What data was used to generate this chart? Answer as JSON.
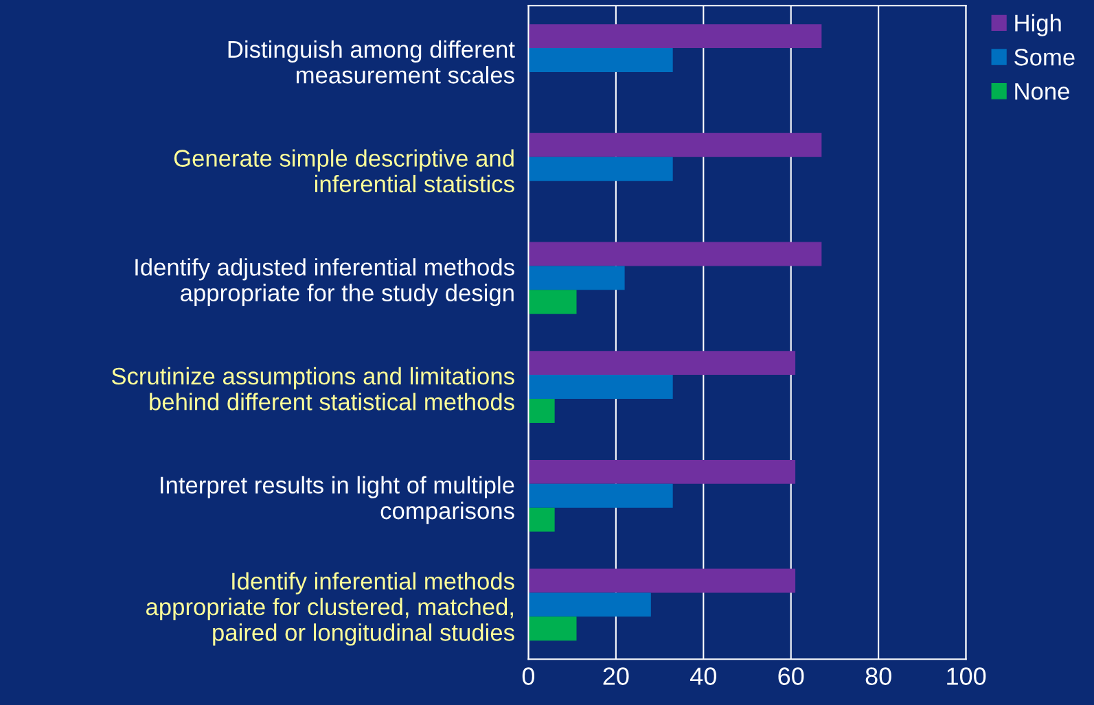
{
  "chart_data": {
    "type": "bar",
    "orientation": "horizontal",
    "categories": [
      "Distinguish among different measurement scales",
      "Generate simple descriptive and inferential statistics",
      "Identify adjusted inferential methods appropriate for the study design",
      "Scrutinize assumptions and limitations behind different statistical methods",
      "Interpret results in light of multiple comparisons",
      "Identify inferential methods appropriate for clustered, matched, paired or longitudinal studies"
    ],
    "series": [
      {
        "name": "High",
        "color": "#7030a0",
        "values": [
          67,
          67,
          67,
          61,
          61,
          61
        ]
      },
      {
        "name": "Some",
        "color": "#0070c0",
        "values": [
          33,
          33,
          22,
          33,
          33,
          28
        ]
      },
      {
        "name": "None",
        "color": "#00b050",
        "values": [
          0,
          0,
          11,
          6,
          6,
          11
        ]
      }
    ],
    "xlim": [
      0,
      100
    ],
    "xticks": [
      0,
      20,
      40,
      60,
      80,
      100
    ],
    "grid": "x",
    "legend": "top right"
  }
}
